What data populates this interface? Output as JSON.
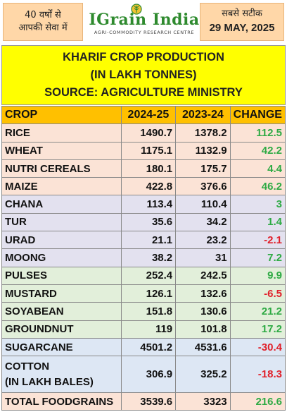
{
  "header": {
    "tag_left_line1": "40 वर्षों से",
    "tag_left_line2": "आपकी सेवा में",
    "logo_name": "IGrain India",
    "logo_tagline": "AGRI-COMMODITY RESEARCH CENTRE",
    "tag_right_hindi": "सबसे सटीक",
    "tag_right_date": "29 MAY, 2025"
  },
  "title": {
    "line1": "KHARIF CROP PRODUCTION",
    "line2": "(IN LAKH TONNES)",
    "line3": "SOURCE: AGRICULTURE MINISTRY"
  },
  "colors": {
    "title_bg": "#ffff00",
    "header_row_bg": "#ffc000",
    "tag_bg": "#ffd7a8",
    "positive": "#2eaa44",
    "negative": "#e0202a",
    "row_pink": "#fbe3d6",
    "row_lavender": "#e3e1ef",
    "row_mint": "#e2efda",
    "row_blue": "#dde7f4"
  },
  "table": {
    "headers": [
      "CROP",
      "2024-25",
      "2023-24",
      "CHANGE"
    ],
    "rows": [
      {
        "crop": "RICE",
        "y2024": "1490.7",
        "y2023": "1378.2",
        "change": "112.5",
        "sign": "pos",
        "bg": "#fbe3d6"
      },
      {
        "crop": "WHEAT",
        "y2024": "1175.1",
        "y2023": "1132.9",
        "change": "42.2",
        "sign": "pos",
        "bg": "#fbe3d6"
      },
      {
        "crop": "NUTRI CEREALS",
        "y2024": "180.1",
        "y2023": "175.7",
        "change": "4.4",
        "sign": "pos",
        "bg": "#fbe3d6"
      },
      {
        "crop": "MAIZE",
        "y2024": "422.8",
        "y2023": "376.6",
        "change": "46.2",
        "sign": "pos",
        "bg": "#fbe3d6"
      },
      {
        "crop": "CHANA",
        "y2024": "113.4",
        "y2023": "110.4",
        "change": "3",
        "sign": "pos",
        "bg": "#e3e1ef"
      },
      {
        "crop": "TUR",
        "y2024": "35.6",
        "y2023": "34.2",
        "change": "1.4",
        "sign": "pos",
        "bg": "#e3e1ef"
      },
      {
        "crop": "URAD",
        "y2024": "21.1",
        "y2023": "23.2",
        "change": "-2.1",
        "sign": "neg",
        "bg": "#e3e1ef"
      },
      {
        "crop": "MOONG",
        "y2024": "38.2",
        "y2023": "31",
        "change": "7.2",
        "sign": "pos",
        "bg": "#e3e1ef"
      },
      {
        "crop": "PULSES",
        "y2024": "252.4",
        "y2023": "242.5",
        "change": "9.9",
        "sign": "pos",
        "bg": "#e2efda"
      },
      {
        "crop": "MUSTARD",
        "y2024": "126.1",
        "y2023": "132.6",
        "change": "-6.5",
        "sign": "neg",
        "bg": "#e2efda"
      },
      {
        "crop": "SOYABEAN",
        "y2024": "151.8",
        "y2023": "130.6",
        "change": "21.2",
        "sign": "pos",
        "bg": "#e2efda"
      },
      {
        "crop": "GROUNDNUT",
        "y2024": "119",
        "y2023": "101.8",
        "change": "17.2",
        "sign": "pos",
        "bg": "#e2efda"
      },
      {
        "crop": "SUGARCANE",
        "y2024": "4501.2",
        "y2023": "4531.6",
        "change": "-30.4",
        "sign": "neg",
        "bg": "#dde7f4"
      },
      {
        "crop": "COTTON (IN LAKH BALES)",
        "crop_line1": "COTTON",
        "crop_line2": "(IN LAKH BALES)",
        "y2024": "306.9",
        "y2023": "325.2",
        "change": "-18.3",
        "sign": "neg",
        "bg": "#dde7f4",
        "tall": true
      },
      {
        "crop": "TOTAL FOODGRAINS",
        "y2024": "3539.6",
        "y2023": "3323",
        "change": "216.6",
        "sign": "pos",
        "bg": "#fbe3d6"
      }
    ]
  }
}
